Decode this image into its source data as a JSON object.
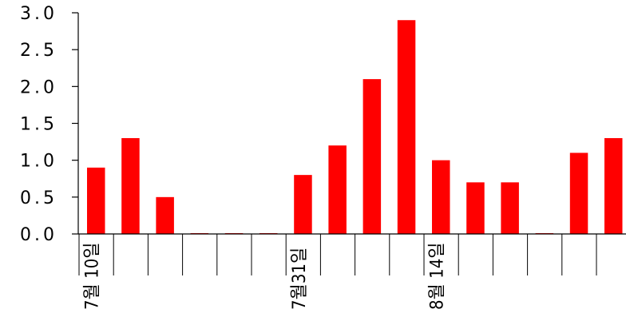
{
  "chart_data": {
    "type": "bar",
    "categories": [
      "7월 10일",
      "",
      "",
      "",
      "",
      "",
      "7월31일",
      "",
      "",
      "",
      "8월 14일",
      "",
      "",
      "",
      "",
      ""
    ],
    "values": [
      0.9,
      1.3,
      0.5,
      0.0,
      0.0,
      0.0,
      0.8,
      1.2,
      2.1,
      2.9,
      1.0,
      0.7,
      0.7,
      0.0,
      1.1,
      1.3
    ],
    "y_ticks": [
      "0.0",
      "0.5",
      "1.0",
      "1.5",
      "2.0",
      "2.5",
      "3.0"
    ],
    "ylim": [
      0,
      3.0
    ],
    "bar_color": "#ff0000",
    "grid": false,
    "legend": "none"
  }
}
